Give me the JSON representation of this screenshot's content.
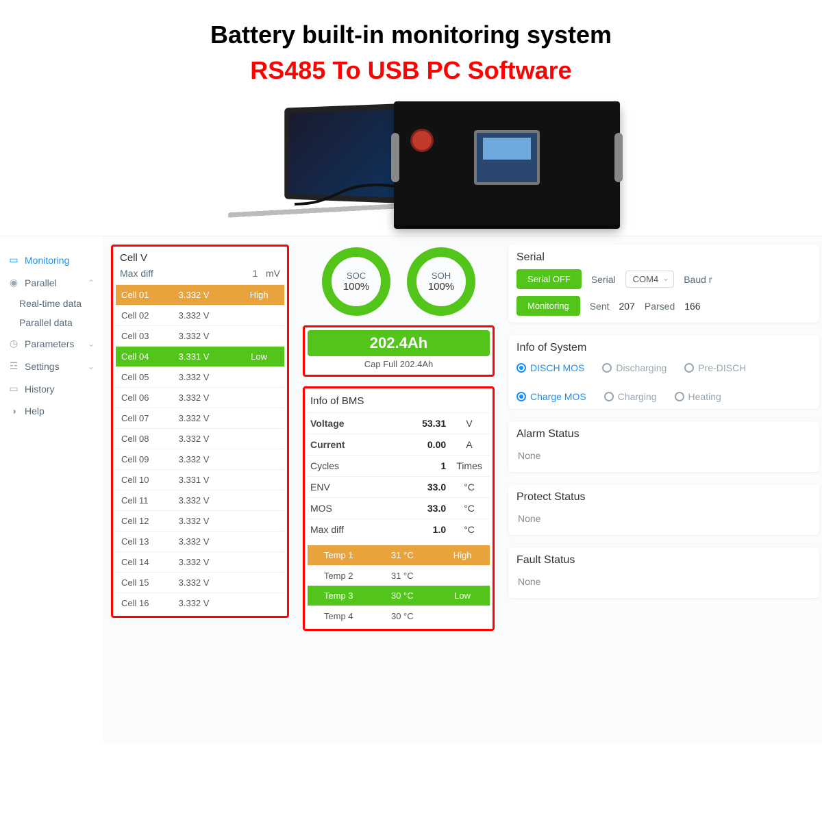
{
  "hero": {
    "title": "Battery built-in monitoring system",
    "subtitle": "RS485 To USB PC Software"
  },
  "colors": {
    "green": "#52c41a",
    "orange": "#e8a33d",
    "blue": "#1890ff",
    "red": "#ff0000"
  },
  "sidebar": {
    "items": [
      {
        "icon": "monitor",
        "label": "Monitoring",
        "active": true
      },
      {
        "icon": "eye",
        "label": "Parallel",
        "expandable": true,
        "expanded": true,
        "children": [
          {
            "label": "Real-time data"
          },
          {
            "label": "Parallel data"
          }
        ]
      },
      {
        "icon": "gauge",
        "label": "Parameters",
        "expandable": true
      },
      {
        "icon": "sliders",
        "label": "Settings",
        "expandable": true
      },
      {
        "icon": "folder",
        "label": "History"
      },
      {
        "icon": "headset",
        "label": "Help"
      }
    ]
  },
  "cellv": {
    "title": "Cell V",
    "maxdiff_label": "Max diff",
    "maxdiff_value": "1",
    "maxdiff_unit": "mV",
    "rows": [
      {
        "name": "Cell 01",
        "v": "3.332 V",
        "tag": "High",
        "cls": "hi"
      },
      {
        "name": "Cell 02",
        "v": "3.332 V",
        "tag": "",
        "cls": ""
      },
      {
        "name": "Cell 03",
        "v": "3.332 V",
        "tag": "",
        "cls": ""
      },
      {
        "name": "Cell 04",
        "v": "3.331 V",
        "tag": "Low",
        "cls": "lo"
      },
      {
        "name": "Cell 05",
        "v": "3.332 V",
        "tag": "",
        "cls": ""
      },
      {
        "name": "Cell 06",
        "v": "3.332 V",
        "tag": "",
        "cls": ""
      },
      {
        "name": "Cell 07",
        "v": "3.332 V",
        "tag": "",
        "cls": ""
      },
      {
        "name": "Cell 08",
        "v": "3.332 V",
        "tag": "",
        "cls": ""
      },
      {
        "name": "Cell 09",
        "v": "3.332 V",
        "tag": "",
        "cls": ""
      },
      {
        "name": "Cell 10",
        "v": "3.331 V",
        "tag": "",
        "cls": ""
      },
      {
        "name": "Cell 11",
        "v": "3.332 V",
        "tag": "",
        "cls": ""
      },
      {
        "name": "Cell 12",
        "v": "3.332 V",
        "tag": "",
        "cls": ""
      },
      {
        "name": "Cell 13",
        "v": "3.332 V",
        "tag": "",
        "cls": ""
      },
      {
        "name": "Cell 14",
        "v": "3.332 V",
        "tag": "",
        "cls": ""
      },
      {
        "name": "Cell 15",
        "v": "3.332 V",
        "tag": "",
        "cls": ""
      },
      {
        "name": "Cell 16",
        "v": "3.332 V",
        "tag": "",
        "cls": ""
      }
    ]
  },
  "gauges": {
    "soc": {
      "label": "SOC",
      "value": "100%"
    },
    "soh": {
      "label": "SOH",
      "value": "100%"
    }
  },
  "capacity": {
    "big": "202.4Ah",
    "sub": "Cap Full 202.4Ah"
  },
  "bms": {
    "title": "Info of BMS",
    "rows": [
      {
        "k": "Voltage",
        "v": "53.31",
        "u": "V",
        "bold": true
      },
      {
        "k": "Current",
        "v": "0.00",
        "u": "A",
        "bold": true
      },
      {
        "k": "Cycles",
        "v": "1",
        "u": "Times",
        "bold": false
      },
      {
        "k": "ENV",
        "v": "33.0",
        "u": "°C",
        "bold": false
      },
      {
        "k": "MOS",
        "v": "33.0",
        "u": "°C",
        "bold": false
      },
      {
        "k": "Max diff",
        "v": "1.0",
        "u": "°C",
        "bold": false
      }
    ],
    "temps": [
      {
        "name": "Temp 1",
        "v": "31 °C",
        "tag": "High",
        "cls": "hi"
      },
      {
        "name": "Temp 2",
        "v": "31 °C",
        "tag": "",
        "cls": "plain"
      },
      {
        "name": "Temp 3",
        "v": "30 °C",
        "tag": "Low",
        "cls": "lo"
      },
      {
        "name": "Temp 4",
        "v": "30 °C",
        "tag": "",
        "cls": "plain"
      }
    ]
  },
  "serial": {
    "title": "Serial",
    "btn_off": "Serial OFF",
    "btn_mon": "Monitoring",
    "serial_label": "Serial",
    "port": "COM4",
    "baud_label": "Baud r",
    "sent_label": "Sent",
    "sent": "207",
    "parsed_label": "Parsed",
    "parsed": "166"
  },
  "sysinfo": {
    "title": "Info of System",
    "items": [
      {
        "label": "DISCH MOS",
        "on": true
      },
      {
        "label": "Discharging",
        "on": false
      },
      {
        "label": "Pre-DISCH",
        "on": false
      },
      {
        "label": "Charge MOS",
        "on": true
      },
      {
        "label": "Charging",
        "on": false
      },
      {
        "label": "Heating",
        "on": false
      }
    ]
  },
  "status": {
    "alarm": {
      "title": "Alarm Status",
      "body": "None"
    },
    "protect": {
      "title": "Protect Status",
      "body": "None"
    },
    "fault": {
      "title": "Fault Status",
      "body": "None"
    }
  }
}
